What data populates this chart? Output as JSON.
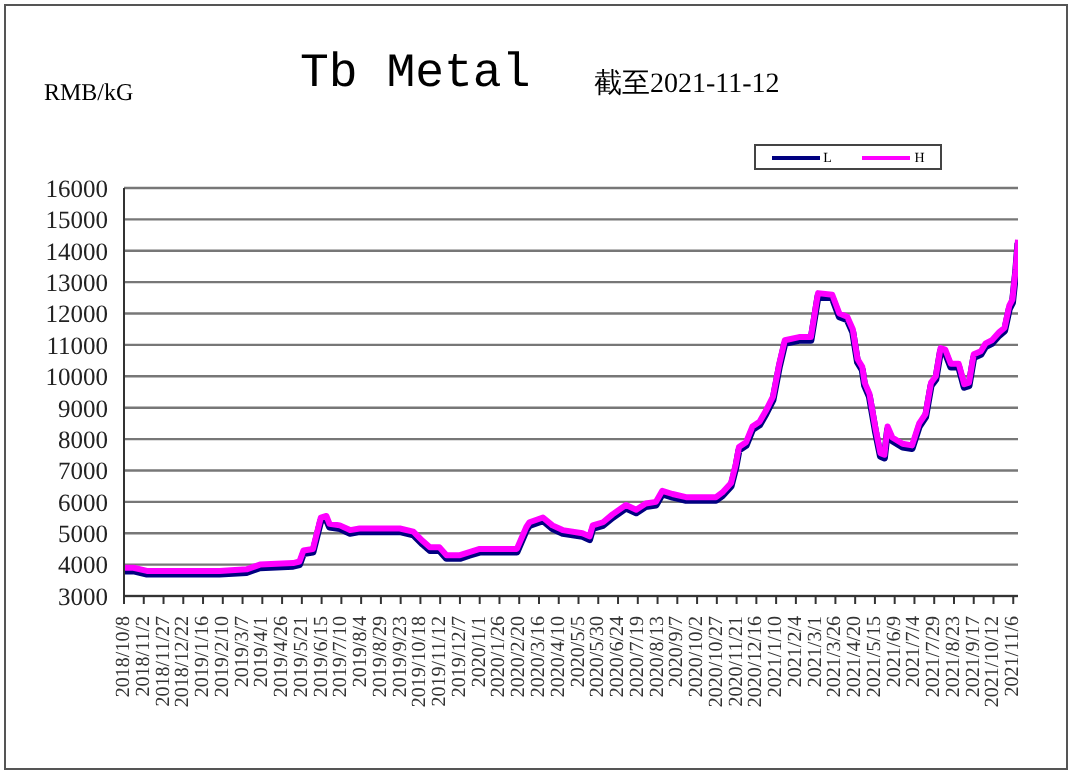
{
  "chart_data": {
    "type": "line",
    "title": "Tb Metal",
    "subtitle": "截至2021-11-12",
    "ylabel": "RMB/kG",
    "x": [
      "2018-10-08",
      "2018-10-20",
      "2018-11-06",
      "2018-11-22",
      "2019-01-20",
      "2019-02-06",
      "2019-03-12",
      "2019-03-29",
      "2019-05-10",
      "2019-05-18",
      "2019-05-23",
      "2019-06-04",
      "2019-06-08",
      "2019-06-14",
      "2019-06-21",
      "2019-06-25",
      "2019-07-08",
      "2019-07-21",
      "2019-08-02",
      "2019-08-19",
      "2019-09-22",
      "2019-10-09",
      "2019-10-21",
      "2019-10-30",
      "2019-11-11",
      "2019-11-20",
      "2019-12-07",
      "2019-12-19",
      "2020-01-01",
      "2020-02-12",
      "2020-02-17",
      "2020-02-29",
      "2020-03-04",
      "2020-03-21",
      "2020-04-02",
      "2020-04-15",
      "2020-05-10",
      "2020-05-19",
      "2020-05-23",
      "2020-06-05",
      "2020-06-17",
      "2020-07-04",
      "2020-07-17",
      "2020-07-29",
      "2020-08-11",
      "2020-08-19",
      "2020-09-01",
      "2020-09-18",
      "2020-10-26",
      "2020-11-03",
      "2020-11-14",
      "2020-11-20",
      "2020-11-24",
      "2020-12-03",
      "2020-12-11",
      "2020-12-20",
      "2020-12-28",
      "2021-01-06",
      "2021-01-14",
      "2021-01-21",
      "2021-02-08",
      "2021-02-23",
      "2021-03-04",
      "2021-03-22",
      "2021-03-31",
      "2021-04-10",
      "2021-04-17",
      "2021-04-23",
      "2021-04-29",
      "2021-05-02",
      "2021-05-08",
      "2021-05-16",
      "2021-05-22",
      "2021-05-27",
      "2021-05-31",
      "2021-06-06",
      "2021-06-19",
      "2021-07-01",
      "2021-07-10",
      "2021-07-18",
      "2021-07-25",
      "2021-07-31",
      "2021-08-06",
      "2021-08-12",
      "2021-08-19",
      "2021-08-29",
      "2021-09-05",
      "2021-09-11",
      "2021-09-17",
      "2021-09-26",
      "2021-10-02",
      "2021-10-10",
      "2021-10-19",
      "2021-10-26",
      "2021-11-01",
      "2021-11-05",
      "2021-11-09",
      "2021-11-12"
    ],
    "series": [
      {
        "name": "L",
        "color": "#000080",
        "values": [
          3800,
          3800,
          3700,
          3700,
          3700,
          3700,
          3750,
          3900,
          3950,
          4000,
          4350,
          4400,
          4800,
          5400,
          5450,
          5200,
          5150,
          5000,
          5050,
          5050,
          5050,
          4950,
          4650,
          4450,
          4450,
          4200,
          4200,
          4300,
          4400,
          4400,
          4400,
          5100,
          5250,
          5400,
          5150,
          5000,
          4900,
          4800,
          5150,
          5250,
          5500,
          5800,
          5650,
          5850,
          5900,
          6250,
          6150,
          6050,
          6050,
          6200,
          6500,
          7100,
          7650,
          7800,
          8300,
          8450,
          8800,
          9250,
          10300,
          11050,
          11150,
          11150,
          12550,
          12500,
          11900,
          11800,
          11400,
          10450,
          10200,
          9700,
          9350,
          8200,
          7450,
          7400,
          8300,
          7950,
          7750,
          7700,
          8400,
          8700,
          9700,
          9900,
          10800,
          10750,
          10300,
          10300,
          9650,
          9700,
          10600,
          10700,
          10950,
          11050,
          11300,
          11450,
          12150,
          12350,
          13300,
          14250
        ]
      },
      {
        "name": "H",
        "color": "#ff00ff",
        "values": [
          3900,
          3900,
          3800,
          3800,
          3800,
          3800,
          3850,
          4000,
          4050,
          4100,
          4450,
          4500,
          4900,
          5500,
          5550,
          5300,
          5250,
          5100,
          5150,
          5150,
          5150,
          5050,
          4750,
          4550,
          4550,
          4300,
          4300,
          4400,
          4500,
          4500,
          4500,
          5200,
          5350,
          5500,
          5250,
          5100,
          5000,
          4900,
          5250,
          5350,
          5600,
          5900,
          5750,
          5950,
          6000,
          6350,
          6250,
          6150,
          6150,
          6300,
          6600,
          7200,
          7750,
          7900,
          8400,
          8550,
          8900,
          9350,
          10400,
          11150,
          11250,
          11250,
          12650,
          12600,
          12000,
          11900,
          11500,
          10550,
          10300,
          9800,
          9450,
          8300,
          7550,
          7500,
          8400,
          8050,
          7850,
          7800,
          8500,
          8800,
          9800,
          10000,
          10900,
          10850,
          10400,
          10400,
          9750,
          9800,
          10700,
          10800,
          11050,
          11150,
          11400,
          11550,
          12250,
          12450,
          13400,
          14350
        ]
      }
    ],
    "xlim": [
      "2018-10-08",
      "2021-11-12"
    ],
    "xticks": [
      {
        "value": "2018-10-08",
        "label": "2018/10/8"
      },
      {
        "value": "2018-11-02",
        "label": "2018/11/2"
      },
      {
        "value": "2018-11-27",
        "label": "2018/11/27"
      },
      {
        "value": "2018-12-22",
        "label": "2018/12/22"
      },
      {
        "value": "2019-01-16",
        "label": "2019/1/16"
      },
      {
        "value": "2019-02-10",
        "label": "2019/2/10"
      },
      {
        "value": "2019-03-07",
        "label": "2019/3/7"
      },
      {
        "value": "2019-04-01",
        "label": "2019/4/1"
      },
      {
        "value": "2019-04-26",
        "label": "2019/4/26"
      },
      {
        "value": "2019-05-21",
        "label": "2019/5/21"
      },
      {
        "value": "2019-06-15",
        "label": "2019/6/15"
      },
      {
        "value": "2019-07-10",
        "label": "2019/7/10"
      },
      {
        "value": "2019-08-04",
        "label": "2019/8/4"
      },
      {
        "value": "2019-08-29",
        "label": "2019/8/29"
      },
      {
        "value": "2019-09-23",
        "label": "2019/9/23"
      },
      {
        "value": "2019-10-18",
        "label": "2019/10/18"
      },
      {
        "value": "2019-11-12",
        "label": "2019/11/12"
      },
      {
        "value": "2019-12-07",
        "label": "2019/12/7"
      },
      {
        "value": "2020-01-01",
        "label": "2020/1/1"
      },
      {
        "value": "2020-01-26",
        "label": "2020/1/26"
      },
      {
        "value": "2020-02-20",
        "label": "2020/2/20"
      },
      {
        "value": "2020-03-16",
        "label": "2020/3/16"
      },
      {
        "value": "2020-04-10",
        "label": "2020/4/10"
      },
      {
        "value": "2020-05-05",
        "label": "2020/5/5"
      },
      {
        "value": "2020-05-30",
        "label": "2020/5/30"
      },
      {
        "value": "2020-06-24",
        "label": "2020/6/24"
      },
      {
        "value": "2020-07-19",
        "label": "2020/7/19"
      },
      {
        "value": "2020-08-13",
        "label": "2020/8/13"
      },
      {
        "value": "2020-09-07",
        "label": "2020/9/7"
      },
      {
        "value": "2020-10-02",
        "label": "2020/10/2"
      },
      {
        "value": "2020-10-27",
        "label": "2020/10/27"
      },
      {
        "value": "2020-11-21",
        "label": "2020/11/21"
      },
      {
        "value": "2020-12-16",
        "label": "2020/12/16"
      },
      {
        "value": "2021-01-10",
        "label": "2021/1/10"
      },
      {
        "value": "2021-02-04",
        "label": "2021/2/4"
      },
      {
        "value": "2021-03-01",
        "label": "2021/3/1"
      },
      {
        "value": "2021-03-26",
        "label": "2021/3/26"
      },
      {
        "value": "2021-04-20",
        "label": "2021/4/20"
      },
      {
        "value": "2021-05-15",
        "label": "2021/5/15"
      },
      {
        "value": "2021-06-09",
        "label": "2021/6/9"
      },
      {
        "value": "2021-07-04",
        "label": "2021/7/4"
      },
      {
        "value": "2021-07-29",
        "label": "2021/7/29"
      },
      {
        "value": "2021-08-23",
        "label": "2021/8/23"
      },
      {
        "value": "2021-09-17",
        "label": "2021/9/17"
      },
      {
        "value": "2021-10-12",
        "label": "2021/10/12"
      },
      {
        "value": "2021-11-06",
        "label": "2021/11/6"
      }
    ],
    "ylim": [
      3000,
      16000
    ],
    "yticks": [
      3000,
      4000,
      5000,
      6000,
      7000,
      8000,
      9000,
      10000,
      11000,
      12000,
      13000,
      14000,
      15000,
      16000
    ],
    "grid": "y",
    "legend": "top right",
    "marker": "none",
    "line_style": "solid"
  }
}
